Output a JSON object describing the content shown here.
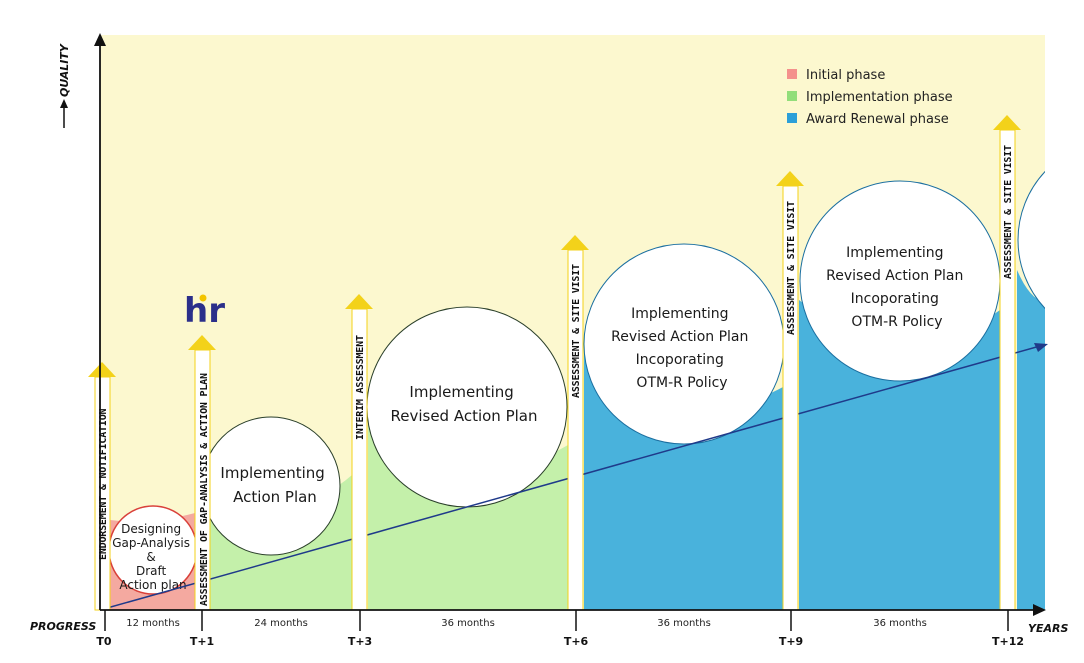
{
  "axes": {
    "y_label": "QUALITY",
    "x_label": "YEARS",
    "origin_label": "PROGRESS"
  },
  "legend": [
    {
      "label": "Initial phase",
      "color": "#f4918c"
    },
    {
      "label": "Implementation phase",
      "color": "#92de7a"
    },
    {
      "label": "Award Renewal phase",
      "color": "#2b9fd8"
    }
  ],
  "colors": {
    "background": "#fcf8cf",
    "initial": "#f4a9a0",
    "implementation": "#c4f0aa",
    "renewal": "#49b2dc",
    "milestone_arrow": "#f3d21a",
    "trend_line": "#1f3a8a"
  },
  "ticks": [
    "T0",
    "T+1",
    "T+3",
    "T+6",
    "T+9",
    "T+12"
  ],
  "durations": [
    "12 months",
    "24 months",
    "36 months",
    "36 months",
    "36 months"
  ],
  "milestones": [
    "ENDORSEMENT & NOTIFICATION",
    "ASSESSMENT OF GAP-ANALYSIS & ACTION PLAN",
    "INTERIM ASSESSMENT",
    "ASSESSMENT & SITE VISIT",
    "ASSESSMENT & SITE VISIT",
    "ASSESSMENT & SITE VISIT"
  ],
  "circles": [
    {
      "lines": [
        "Designing",
        "Gap-Analysis",
        "&",
        "Draft",
        "Action plan"
      ]
    },
    {
      "lines": [
        "Implementing",
        "Action Plan"
      ]
    },
    {
      "lines": [
        "Implementing",
        "Revised Action Plan"
      ]
    },
    {
      "lines": [
        "Implementing",
        "Revised Action Plan",
        "Incoporating",
        "OTM-R Policy"
      ]
    },
    {
      "lines": [
        "Implementing",
        "Revised Action Plan",
        "Incoporating",
        "OTM-R Policy"
      ]
    }
  ],
  "logo": {
    "text": "hr"
  }
}
